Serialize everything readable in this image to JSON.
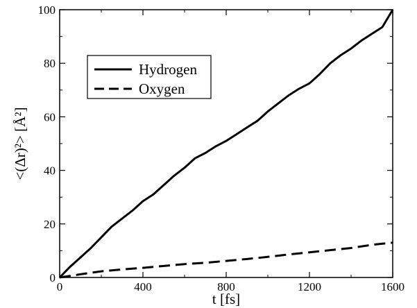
{
  "chart_data": {
    "type": "line",
    "title": "",
    "xlabel": "t [fs]",
    "ylabel": "<(Δr)²> [Å²]",
    "xlim": [
      0,
      1600
    ],
    "ylim": [
      0,
      100
    ],
    "xticks": [
      0,
      400,
      800,
      1200,
      1600
    ],
    "yticks": [
      0,
      20,
      40,
      60,
      80,
      100
    ],
    "grid": false,
    "legend_position": "upper-left",
    "series": [
      {
        "name": "Hydrogen",
        "style": "solid",
        "color": "#000000",
        "x": [
          0,
          50,
          100,
          150,
          200,
          250,
          300,
          350,
          400,
          450,
          500,
          550,
          600,
          650,
          700,
          750,
          800,
          850,
          900,
          950,
          1000,
          1050,
          1100,
          1150,
          1200,
          1250,
          1300,
          1350,
          1400,
          1450,
          1500,
          1550,
          1600
        ],
        "y": [
          0,
          4,
          7.5,
          11,
          15,
          19,
          22,
          25,
          28.5,
          31,
          34.5,
          38,
          41,
          44.5,
          46.5,
          49,
          51,
          53.5,
          56,
          58.5,
          62,
          65,
          68,
          70.5,
          72.5,
          76,
          80,
          83,
          85.5,
          88.5,
          91,
          93.5,
          100
        ]
      },
      {
        "name": "Oxygen",
        "style": "dashed",
        "color": "#000000",
        "x": [
          0,
          100,
          200,
          300,
          400,
          500,
          600,
          700,
          800,
          900,
          1000,
          1100,
          1200,
          1300,
          1400,
          1500,
          1600
        ],
        "y": [
          0,
          1.2,
          2.3,
          3.0,
          3.6,
          4.3,
          5.0,
          5.5,
          6.2,
          6.9,
          7.7,
          8.6,
          9.4,
          10.2,
          11.0,
          12.2,
          13.0
        ]
      }
    ]
  }
}
